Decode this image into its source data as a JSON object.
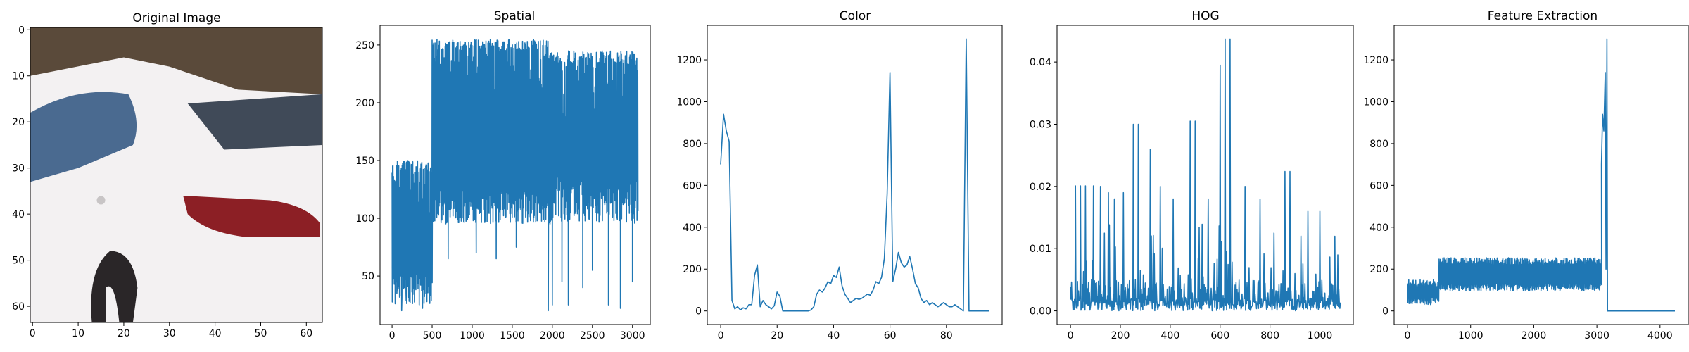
{
  "chart_data": [
    {
      "type": "image",
      "title": "Original Image",
      "xlim": [
        -0.5,
        63.5
      ],
      "ylim": [
        63.5,
        -0.5
      ],
      "xticks": [
        0,
        10,
        20,
        30,
        40,
        50,
        60
      ],
      "yticks": [
        0,
        10,
        20,
        30,
        40,
        50,
        60
      ],
      "colors": {
        "background_top": "#5a4a3a",
        "car_body": "#f3f1f2",
        "window_left": "#4a6a90",
        "window_right": "#404a58",
        "taillight": "#8c1f25",
        "tire": "#2a2628"
      }
    },
    {
      "type": "line",
      "title": "Spatial",
      "xlim": [
        -150,
        3222
      ],
      "ylim": [
        8,
        267
      ],
      "xticks": [
        0,
        500,
        1000,
        1500,
        2000,
        2500,
        3000
      ],
      "yticks": [
        50,
        100,
        150,
        200,
        250
      ],
      "regions": [
        {
          "x": [
            0,
            500
          ],
          "low": 25,
          "high": 150,
          "osc": 12
        },
        {
          "x": [
            500,
            1950
          ],
          "low": 95,
          "high": 255,
          "osc": 10
        },
        {
          "x": [
            1950,
            3072
          ],
          "low": 95,
          "high": 245,
          "osc": 14
        }
      ],
      "dips": [
        [
          60,
          35
        ],
        [
          120,
          20
        ],
        [
          180,
          35
        ],
        [
          380,
          22
        ],
        [
          440,
          40
        ],
        [
          700,
          65
        ],
        [
          1050,
          70
        ],
        [
          1300,
          65
        ],
        [
          1550,
          75
        ],
        [
          1950,
          20
        ],
        [
          2000,
          25
        ],
        [
          2120,
          45
        ],
        [
          2200,
          25
        ],
        [
          2380,
          40
        ],
        [
          2500,
          55
        ],
        [
          2700,
          25
        ],
        [
          2850,
          22
        ],
        [
          3000,
          45
        ]
      ]
    },
    {
      "type": "line",
      "title": "Color",
      "xlim": [
        -4.75,
        99.75
      ],
      "ylim": [
        -65,
        1365
      ],
      "xticks": [
        0,
        20,
        40,
        60,
        80
      ],
      "yticks": [
        0,
        200,
        400,
        600,
        800,
        1000,
        1200
      ],
      "x": [
        0,
        1,
        2,
        3,
        4,
        5,
        6,
        7,
        8,
        9,
        10,
        11,
        12,
        13,
        14,
        15,
        16,
        17,
        18,
        19,
        20,
        21,
        22,
        23,
        24,
        25,
        26,
        27,
        28,
        29,
        30,
        31,
        32,
        33,
        34,
        35,
        36,
        37,
        38,
        39,
        40,
        41,
        42,
        43,
        44,
        45,
        46,
        47,
        48,
        49,
        50,
        51,
        52,
        53,
        54,
        55,
        56,
        57,
        58,
        59,
        60,
        61,
        62,
        63,
        64,
        65,
        66,
        67,
        68,
        69,
        70,
        71,
        72,
        73,
        74,
        75,
        76,
        77,
        78,
        79,
        80,
        81,
        82,
        83,
        84,
        85,
        86,
        87,
        88,
        89,
        90,
        91,
        92,
        93,
        94,
        95
      ],
      "values": [
        700,
        940,
        860,
        810,
        50,
        10,
        20,
        5,
        15,
        10,
        30,
        30,
        170,
        220,
        20,
        50,
        30,
        20,
        10,
        25,
        90,
        70,
        0,
        0,
        0,
        0,
        0,
        0,
        0,
        0,
        0,
        0,
        5,
        20,
        80,
        100,
        90,
        110,
        140,
        130,
        170,
        160,
        210,
        120,
        80,
        60,
        40,
        50,
        60,
        55,
        60,
        70,
        80,
        75,
        100,
        140,
        130,
        160,
        250,
        560,
        1140,
        140,
        200,
        280,
        230,
        210,
        220,
        260,
        200,
        130,
        110,
        60,
        40,
        50,
        30,
        40,
        30,
        20,
        30,
        40,
        30,
        20,
        20,
        30,
        20,
        10,
        0,
        1300,
        0,
        0,
        0,
        0,
        0,
        0,
        0,
        0
      ]
    },
    {
      "type": "line",
      "title": "HOG",
      "xlim": [
        -54,
        1134
      ],
      "ylim": [
        -0.0022,
        0.0459
      ],
      "xticks": [
        0,
        200,
        400,
        600,
        800,
        1000
      ],
      "yticks": [
        0.0,
        0.01,
        0.02,
        0.03,
        0.04
      ],
      "peaks": [
        [
          20,
          0.0201
        ],
        [
          40,
          0.0201
        ],
        [
          60,
          0.0201
        ],
        [
          90,
          0.0201
        ],
        [
          120,
          0.02
        ],
        [
          150,
          0.019
        ],
        [
          175,
          0.018
        ],
        [
          210,
          0.019
        ],
        [
          250,
          0.03
        ],
        [
          270,
          0.03
        ],
        [
          320,
          0.026
        ],
        [
          360,
          0.02
        ],
        [
          410,
          0.018
        ],
        [
          480,
          0.0305
        ],
        [
          500,
          0.0305
        ],
        [
          550,
          0.018
        ],
        [
          600,
          0.0395
        ],
        [
          620,
          0.0437
        ],
        [
          640,
          0.0437
        ],
        [
          700,
          0.02
        ],
        [
          760,
          0.018
        ],
        [
          860,
          0.0224
        ],
        [
          880,
          0.0224
        ],
        [
          950,
          0.016
        ],
        [
          1000,
          0.016
        ],
        [
          1060,
          0.012
        ]
      ]
    },
    {
      "type": "line",
      "title": "Feature Extraction",
      "xlim": [
        -212,
        4448
      ],
      "ylim": [
        -65,
        1365
      ],
      "xticks": [
        0,
        1000,
        2000,
        3000,
        4000
      ],
      "yticks": [
        0,
        200,
        400,
        600,
        800,
        1000,
        1200
      ],
      "regions": [
        {
          "x": [
            0,
            500
          ],
          "low": 30,
          "high": 150,
          "osc": 12
        },
        {
          "x": [
            500,
            3072
          ],
          "low": 95,
          "high": 255,
          "osc": 12
        }
      ],
      "spikes": [
        [
          3072,
          700
        ],
        [
          3090,
          940
        ],
        [
          3110,
          860
        ],
        [
          3132,
          1140
        ],
        [
          3145,
          200
        ],
        [
          3159,
          1300
        ],
        [
          3168,
          0
        ]
      ],
      "flat": [
        [
          3168,
          0
        ],
        [
          4236,
          0
        ]
      ]
    }
  ]
}
